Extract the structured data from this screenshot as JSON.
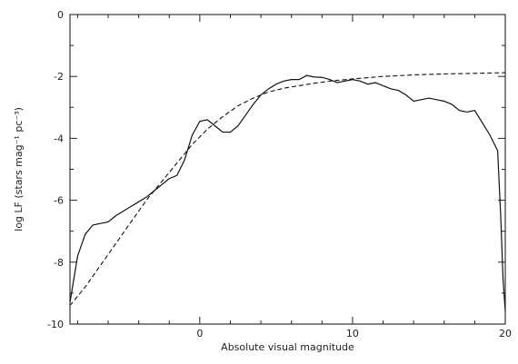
{
  "chart_data": {
    "type": "line",
    "title": "",
    "xlabel": "Absolute visual magnitude",
    "ylabel": "log LF (stars mag⁻¹ pc⁻³)",
    "xlim": [
      -8.5,
      20
    ],
    "ylim": [
      -10,
      0
    ],
    "x_ticks": [
      0,
      10,
      20
    ],
    "x_tick_labels": [
      "0",
      "10",
      "20"
    ],
    "y_ticks": [
      0,
      -2,
      -4,
      -6,
      -8,
      -10
    ],
    "y_tick_labels": [
      "0",
      "-2",
      "-4",
      "-6",
      "-8",
      "-10"
    ],
    "grid": false,
    "legend": "none",
    "series": [
      {
        "style": "solid",
        "x": [
          -8.5,
          -8.0,
          -7.5,
          -7.0,
          -6.5,
          -6.0,
          -5.5,
          -5.0,
          -4.5,
          -4.0,
          -3.5,
          -3.0,
          -2.5,
          -2.0,
          -1.5,
          -1.0,
          -0.5,
          0.0,
          0.5,
          1.0,
          1.5,
          2.0,
          2.5,
          3.0,
          3.5,
          4.0,
          4.5,
          5.0,
          5.5,
          6.0,
          6.5,
          7.0,
          7.5,
          8.0,
          8.5,
          9.0,
          9.5,
          10.0,
          10.5,
          11.0,
          11.5,
          12.0,
          12.5,
          13.0,
          13.5,
          14.0,
          14.5,
          15.0,
          15.5,
          16.0,
          16.5,
          17.0,
          17.5,
          18.0,
          18.5,
          19.0,
          19.5,
          19.7,
          19.85,
          20.0
        ],
        "y": [
          -9.3,
          -7.8,
          -7.1,
          -6.8,
          -6.75,
          -6.7,
          -6.5,
          -6.35,
          -6.2,
          -6.05,
          -5.9,
          -5.7,
          -5.5,
          -5.3,
          -5.2,
          -4.7,
          -3.9,
          -3.45,
          -3.4,
          -3.6,
          -3.8,
          -3.8,
          -3.6,
          -3.25,
          -2.9,
          -2.6,
          -2.4,
          -2.25,
          -2.15,
          -2.1,
          -2.1,
          -1.97,
          -2.02,
          -2.03,
          -2.1,
          -2.2,
          -2.15,
          -2.1,
          -2.15,
          -2.25,
          -2.2,
          -2.3,
          -2.4,
          -2.45,
          -2.6,
          -2.8,
          -2.75,
          -2.7,
          -2.75,
          -2.8,
          -2.9,
          -3.1,
          -3.15,
          -3.1,
          -3.5,
          -3.9,
          -4.4,
          -6.5,
          -8.5,
          -9.6
        ]
      },
      {
        "style": "dashed",
        "x": [
          -8.5,
          -7.5,
          -6.5,
          -5.5,
          -4.5,
          -3.5,
          -2.5,
          -1.5,
          -0.5,
          0.5,
          1.5,
          2.5,
          3.5,
          4.5,
          5.5,
          6.5,
          7.5,
          8.5,
          10,
          12,
          14,
          16,
          18,
          20
        ],
        "y": [
          -9.4,
          -8.8,
          -8.1,
          -7.4,
          -6.7,
          -6.0,
          -5.4,
          -4.8,
          -4.2,
          -3.7,
          -3.3,
          -2.95,
          -2.7,
          -2.5,
          -2.38,
          -2.3,
          -2.22,
          -2.15,
          -2.08,
          -2.0,
          -1.95,
          -1.92,
          -1.9,
          -1.88
        ]
      }
    ]
  }
}
